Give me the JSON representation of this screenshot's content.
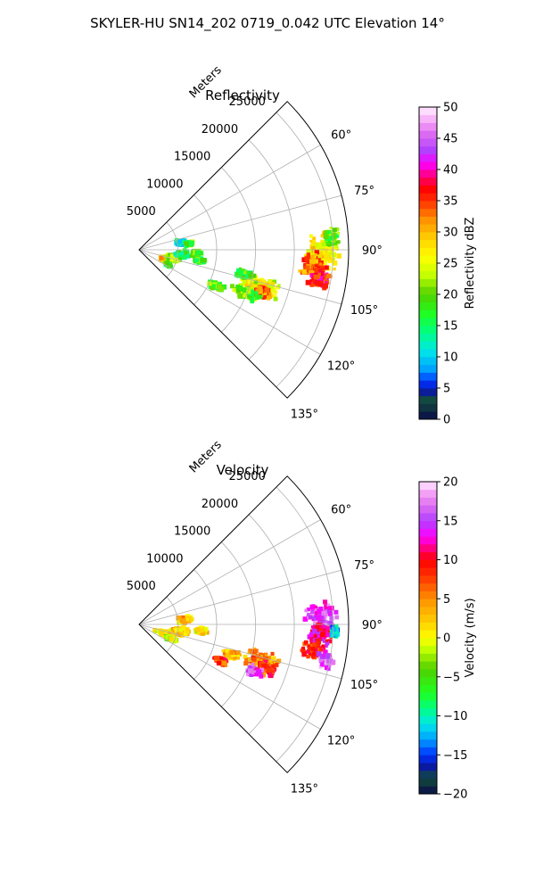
{
  "figure": {
    "suptitle": "SKYLER-HU  SN14_202  0719_0.042 UTC Elevation 14°"
  },
  "chart_data": [
    {
      "type": "heatmap",
      "projection": "polar-sector",
      "title": "Reflectivity",
      "radial_axis_label": "Meters",
      "radial_ticks": [
        "5000",
        "10000",
        "15000",
        "20000",
        "25000"
      ],
      "radial_tick_values": [
        5000,
        10000,
        15000,
        20000,
        25000
      ],
      "angle_ticks": [
        "60°",
        "75°",
        "90°",
        "105°",
        "120°",
        "135°"
      ],
      "angle_tick_values": [
        60,
        75,
        90,
        105,
        120,
        135
      ],
      "theta_range_deg": [
        45,
        135
      ],
      "r_range": [
        0,
        27000
      ],
      "grid": true,
      "colorbar": {
        "label": "Reflectivity dBZ",
        "range": [
          0,
          50
        ],
        "ticks": [
          "0",
          "5",
          "10",
          "15",
          "20",
          "25",
          "30",
          "35",
          "40",
          "45",
          "50"
        ],
        "tick_values": [
          0,
          5,
          10,
          15,
          20,
          25,
          30,
          35,
          40,
          45,
          50
        ],
        "stops": [
          {
            "v": 0,
            "color": "#0a0a4a"
          },
          {
            "v": 3,
            "color": "#134d3a"
          },
          {
            "v": 4.5,
            "color": "#0a1aa0"
          },
          {
            "v": 6,
            "color": "#0030ff"
          },
          {
            "v": 8,
            "color": "#00a0ff"
          },
          {
            "v": 11,
            "color": "#00e8e8"
          },
          {
            "v": 14,
            "color": "#00ff80"
          },
          {
            "v": 17,
            "color": "#20ff20"
          },
          {
            "v": 20,
            "color": "#50d000"
          },
          {
            "v": 23,
            "color": "#c0ff00"
          },
          {
            "v": 26,
            "color": "#ffff00"
          },
          {
            "v": 29,
            "color": "#ffd000"
          },
          {
            "v": 32,
            "color": "#ff9000"
          },
          {
            "v": 35,
            "color": "#ff3000"
          },
          {
            "v": 37,
            "color": "#ff0000"
          },
          {
            "v": 39,
            "color": "#ff0080"
          },
          {
            "v": 41,
            "color": "#ff00ff"
          },
          {
            "v": 43,
            "color": "#b040ff"
          },
          {
            "v": 46,
            "color": "#e070f0"
          },
          {
            "v": 48,
            "color": "#f8b0f8"
          },
          {
            "v": 50,
            "color": "#fff0ff"
          }
        ]
      },
      "echo_regions": [
        {
          "theta": 91,
          "r": 23500,
          "dt": 7,
          "dr": 2800,
          "v": 27
        },
        {
          "theta": 95,
          "r": 22500,
          "dt": 5,
          "dr": 2200,
          "v": 33
        },
        {
          "theta": 99,
          "r": 23500,
          "dt": 4,
          "dr": 1800,
          "v": 37
        },
        {
          "theta": 86,
          "r": 24800,
          "dt": 4,
          "dr": 1200,
          "v": 19
        },
        {
          "theta": 107,
          "r": 16500,
          "dt": 6,
          "dr": 3000,
          "v": 25
        },
        {
          "theta": 109,
          "r": 17000,
          "dt": 3,
          "dr": 1400,
          "v": 34
        },
        {
          "theta": 112,
          "r": 15000,
          "dt": 4,
          "dr": 2500,
          "v": 20
        },
        {
          "theta": 115,
          "r": 11000,
          "dt": 3,
          "dr": 1300,
          "v": 19
        },
        {
          "theta": 103,
          "r": 14000,
          "dt": 3,
          "dr": 1500,
          "v": 18
        },
        {
          "theta": 110,
          "r": 3500,
          "dt": 6,
          "dr": 900,
          "v": 30
        },
        {
          "theta": 104,
          "r": 4500,
          "dt": 8,
          "dr": 1200,
          "v": 22
        },
        {
          "theta": 96,
          "r": 5500,
          "dt": 6,
          "dr": 1400,
          "v": 15
        },
        {
          "theta": 80,
          "r": 5500,
          "dt": 5,
          "dr": 900,
          "v": 12
        },
        {
          "theta": 83,
          "r": 6500,
          "dt": 3,
          "dr": 700,
          "v": 19
        },
        {
          "theta": 93,
          "r": 7500,
          "dt": 3,
          "dr": 900,
          "v": 20
        },
        {
          "theta": 100,
          "r": 8000,
          "dt": 3,
          "dr": 900,
          "v": 19
        },
        {
          "theta": 117,
          "r": 4200,
          "dt": 3,
          "dr": 800,
          "v": 17
        }
      ]
    },
    {
      "type": "heatmap",
      "projection": "polar-sector",
      "title": "Velocity",
      "radial_axis_label": "Meters",
      "radial_ticks": [
        "5000",
        "10000",
        "15000",
        "20000",
        "25000"
      ],
      "radial_tick_values": [
        5000,
        10000,
        15000,
        20000,
        25000
      ],
      "angle_ticks": [
        "60°",
        "75°",
        "90°",
        "105°",
        "120°",
        "135°"
      ],
      "angle_tick_values": [
        60,
        75,
        90,
        105,
        120,
        135
      ],
      "theta_range_deg": [
        45,
        135
      ],
      "r_range": [
        0,
        27000
      ],
      "grid": true,
      "colorbar": {
        "label": "Velocity (m/s)",
        "range": [
          -20,
          20
        ],
        "ticks": [
          "−20",
          "−15",
          "−10",
          "−5",
          "0",
          "5",
          "10",
          "15",
          "20"
        ],
        "tick_values": [
          -20,
          -15,
          -10,
          -5,
          0,
          5,
          10,
          15,
          20
        ],
        "stops": [
          {
            "v": -20,
            "color": "#0a0a4a"
          },
          {
            "v": -18,
            "color": "#134d3a"
          },
          {
            "v": -16.5,
            "color": "#0a1aa0"
          },
          {
            "v": -15,
            "color": "#0030ff"
          },
          {
            "v": -13,
            "color": "#00a0ff"
          },
          {
            "v": -11,
            "color": "#00e8e8"
          },
          {
            "v": -9,
            "color": "#00ff80"
          },
          {
            "v": -7,
            "color": "#20ff20"
          },
          {
            "v": -4,
            "color": "#50d000"
          },
          {
            "v": -1.5,
            "color": "#c0ff00"
          },
          {
            "v": 0,
            "color": "#ffff00"
          },
          {
            "v": 2,
            "color": "#ffd000"
          },
          {
            "v": 5,
            "color": "#ff9000"
          },
          {
            "v": 8,
            "color": "#ff3000"
          },
          {
            "v": 10,
            "color": "#ff0000"
          },
          {
            "v": 11.5,
            "color": "#ff0080"
          },
          {
            "v": 13,
            "color": "#ff00ff"
          },
          {
            "v": 15,
            "color": "#b040ff"
          },
          {
            "v": 17,
            "color": "#e070f0"
          },
          {
            "v": 19,
            "color": "#f8b0f8"
          },
          {
            "v": 20,
            "color": "#fff0ff"
          }
        ]
      },
      "echo_regions": [
        {
          "theta": 87,
          "r": 23500,
          "dt": 5,
          "dr": 2500,
          "v": 15
        },
        {
          "theta": 93,
          "r": 23500,
          "dt": 5,
          "dr": 2500,
          "v": 12
        },
        {
          "theta": 98,
          "r": 23000,
          "dt": 4,
          "dr": 2200,
          "v": 9
        },
        {
          "theta": 101,
          "r": 24500,
          "dt": 3,
          "dr": 1500,
          "v": 16
        },
        {
          "theta": 92,
          "r": 25200,
          "dt": 2,
          "dr": 600,
          "v": -12
        },
        {
          "theta": 107,
          "r": 16500,
          "dt": 6,
          "dr": 3000,
          "v": 5
        },
        {
          "theta": 109,
          "r": 17500,
          "dt": 3,
          "dr": 1500,
          "v": 9
        },
        {
          "theta": 112,
          "r": 16000,
          "dt": 3,
          "dr": 1500,
          "v": 15
        },
        {
          "theta": 114,
          "r": 11500,
          "dt": 3,
          "dr": 1200,
          "v": 8
        },
        {
          "theta": 108,
          "r": 12500,
          "dt": 3,
          "dr": 1500,
          "v": 3
        },
        {
          "theta": 110,
          "r": 3500,
          "dt": 7,
          "dr": 1500,
          "v": 1
        },
        {
          "theta": 114,
          "r": 4500,
          "dt": 4,
          "dr": 1000,
          "v": -2
        },
        {
          "theta": 100,
          "r": 5500,
          "dt": 7,
          "dr": 1500,
          "v": 2
        },
        {
          "theta": 84,
          "r": 6000,
          "dt": 5,
          "dr": 1200,
          "v": 3
        },
        {
          "theta": 96,
          "r": 8000,
          "dt": 4,
          "dr": 1000,
          "v": 1
        }
      ]
    }
  ]
}
